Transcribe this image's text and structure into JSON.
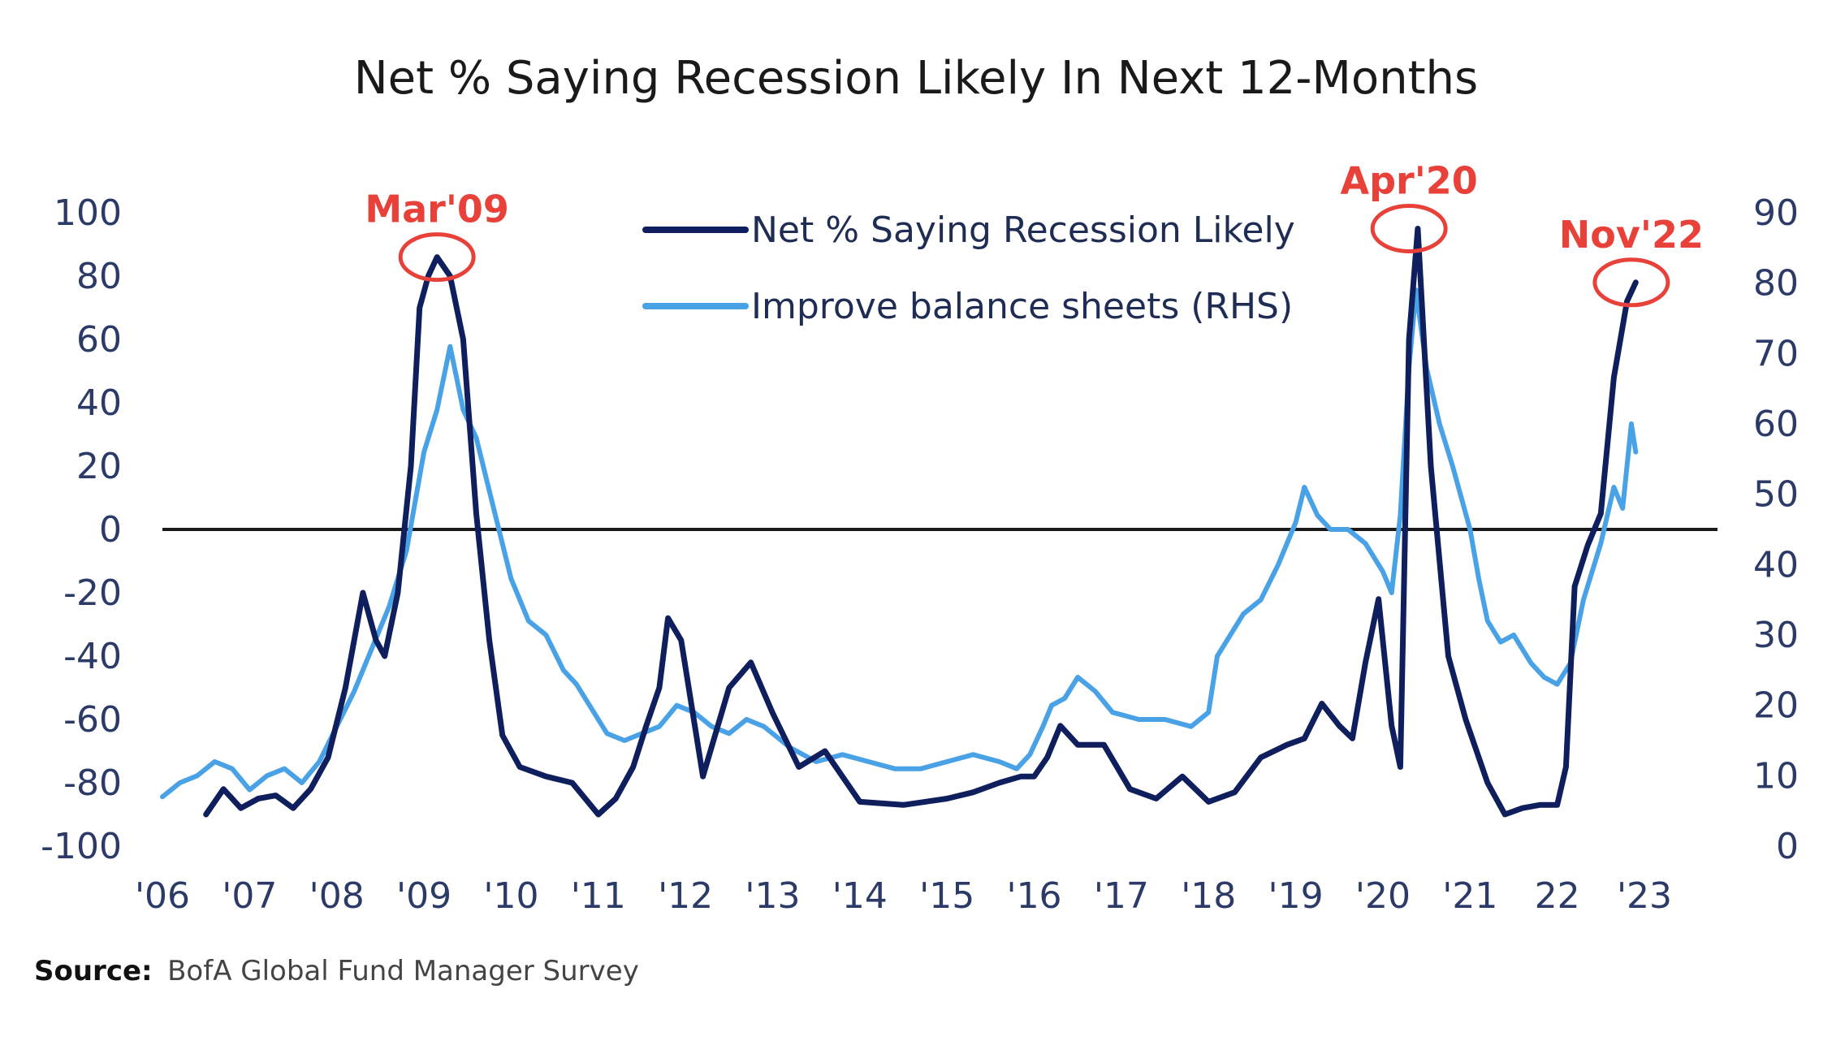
{
  "chart_data": {
    "type": "line",
    "title": "Net % Saying Recession Likely In Next 12-Months",
    "x_ticks": [
      "'06",
      "'07",
      "'08",
      "'09",
      "'10",
      "'11",
      "'12",
      "'13",
      "'14",
      "'15",
      "'16",
      "'17",
      "'18",
      "'19",
      "'20",
      "'21",
      "22",
      "'23"
    ],
    "x_range": [
      2006,
      2023.3
    ],
    "left_axis": {
      "range": [
        -100,
        100
      ],
      "ticks": [
        "100",
        "80",
        "60",
        "40",
        "20",
        "0",
        "-20",
        "-40",
        "-60",
        "-80",
        "-100"
      ]
    },
    "right_axis": {
      "range": [
        0,
        90
      ],
      "ticks": [
        "90",
        "80",
        "70",
        "60",
        "50",
        "40",
        "30",
        "20",
        "10",
        "0"
      ]
    },
    "zero_line": 0,
    "series": [
      {
        "name": "Net % Saying Recession Likely",
        "axis": "left",
        "color": "#0f1e5c",
        "x": [
          2006.5,
          2006.7,
          2006.9,
          2007.1,
          2007.3,
          2007.5,
          2007.7,
          2007.9,
          2008.1,
          2008.3,
          2008.45,
          2008.55,
          2008.7,
          2008.85,
          2008.95,
          2009.05,
          2009.15,
          2009.3,
          2009.45,
          2009.6,
          2009.75,
          2009.9,
          2010.1,
          2010.4,
          2010.7,
          2011.0,
          2011.2,
          2011.4,
          2011.55,
          2011.7,
          2011.8,
          2011.95,
          2012.2,
          2012.5,
          2012.75,
          2013.0,
          2013.3,
          2013.6,
          2014.0,
          2014.5,
          2015.0,
          2015.3,
          2015.6,
          2015.85,
          2016.0,
          2016.15,
          2016.3,
          2016.5,
          2016.8,
          2017.1,
          2017.4,
          2017.7,
          2018.0,
          2018.3,
          2018.6,
          2018.9,
          2019.1,
          2019.3,
          2019.5,
          2019.65,
          2019.8,
          2019.95,
          2020.1,
          2020.2,
          2020.3,
          2020.4,
          2020.55,
          2020.75,
          2020.95,
          2021.2,
          2021.4,
          2021.6,
          2021.8,
          2022.0,
          2022.1,
          2022.2,
          2022.35,
          2022.5,
          2022.65,
          2022.8,
          2022.9
        ],
        "y": [
          -90,
          -82,
          -88,
          -85,
          -84,
          -88,
          -82,
          -72,
          -50,
          -20,
          -35,
          -40,
          -20,
          20,
          70,
          80,
          86,
          80,
          60,
          5,
          -35,
          -65,
          -75,
          -78,
          -80,
          -90,
          -85,
          -75,
          -62,
          -50,
          -28,
          -35,
          -78,
          -50,
          -42,
          -58,
          -75,
          -70,
          -86,
          -87,
          -85,
          -83,
          -80,
          -78,
          -78,
          -72,
          -62,
          -68,
          -68,
          -82,
          -85,
          -78,
          -86,
          -83,
          -72,
          -68,
          -66,
          -55,
          -62,
          -66,
          -42,
          -22,
          -62,
          -75,
          60,
          95,
          20,
          -40,
          -60,
          -80,
          -90,
          -88,
          -87,
          -87,
          -75,
          -18,
          -5,
          5,
          48,
          72,
          78
        ]
      },
      {
        "name": "Improve balance sheets (RHS)",
        "axis": "right",
        "color": "#4aa2e6",
        "x": [
          2006.0,
          2006.2,
          2006.4,
          2006.6,
          2006.8,
          2007.0,
          2007.2,
          2007.4,
          2007.6,
          2007.8,
          2008.0,
          2008.2,
          2008.4,
          2008.6,
          2008.8,
          2009.0,
          2009.15,
          2009.3,
          2009.45,
          2009.6,
          2009.8,
          2010.0,
          2010.2,
          2010.4,
          2010.6,
          2010.75,
          2010.9,
          2011.1,
          2011.3,
          2011.5,
          2011.7,
          2011.9,
          2012.1,
          2012.3,
          2012.5,
          2012.7,
          2012.9,
          2013.2,
          2013.5,
          2013.8,
          2014.1,
          2014.4,
          2014.7,
          2015.0,
          2015.3,
          2015.6,
          2015.8,
          2015.95,
          2016.1,
          2016.2,
          2016.35,
          2016.5,
          2016.7,
          2016.9,
          2017.2,
          2017.5,
          2017.8,
          2018.0,
          2018.1,
          2018.25,
          2018.4,
          2018.6,
          2018.8,
          2019.0,
          2019.1,
          2019.25,
          2019.4,
          2019.6,
          2019.8,
          2020.0,
          2020.1,
          2020.2,
          2020.3,
          2020.38,
          2020.5,
          2020.65,
          2020.8,
          2021.0,
          2021.1,
          2021.2,
          2021.35,
          2021.5,
          2021.7,
          2021.85,
          2022.0,
          2022.15,
          2022.3,
          2022.5,
          2022.65,
          2022.75,
          2022.85,
          2022.9
        ],
        "y": [
          7,
          9,
          10,
          12,
          11,
          8,
          10,
          11,
          9,
          12,
          17,
          22,
          28,
          34,
          42,
          56,
          62,
          71,
          62,
          58,
          48,
          38,
          32,
          30,
          25,
          23,
          20,
          16,
          15,
          16,
          17,
          20,
          19,
          17,
          16,
          18,
          17,
          14,
          12,
          13,
          12,
          11,
          11,
          12,
          13,
          12,
          11,
          13,
          17,
          20,
          21,
          24,
          22,
          19,
          18,
          18,
          17,
          19,
          27,
          30,
          33,
          35,
          40,
          46,
          51,
          47,
          45,
          45,
          43,
          39,
          36,
          47,
          68,
          79,
          68,
          60,
          54,
          45,
          38,
          32,
          29,
          30,
          26,
          24,
          23,
          26,
          35,
          43,
          51,
          48,
          60,
          56
        ]
      }
    ],
    "annotations": [
      {
        "label": "Mar'09",
        "x": 2009.15,
        "y": 86
      },
      {
        "label": "Apr'20",
        "x": 2020.3,
        "y": 95
      },
      {
        "label": "Nov'22",
        "x": 2022.85,
        "y": 78
      }
    ],
    "legend": {
      "placement": "top-center"
    }
  },
  "source": {
    "label": "Source:",
    "text": "BofA Global Fund Manager Survey"
  }
}
